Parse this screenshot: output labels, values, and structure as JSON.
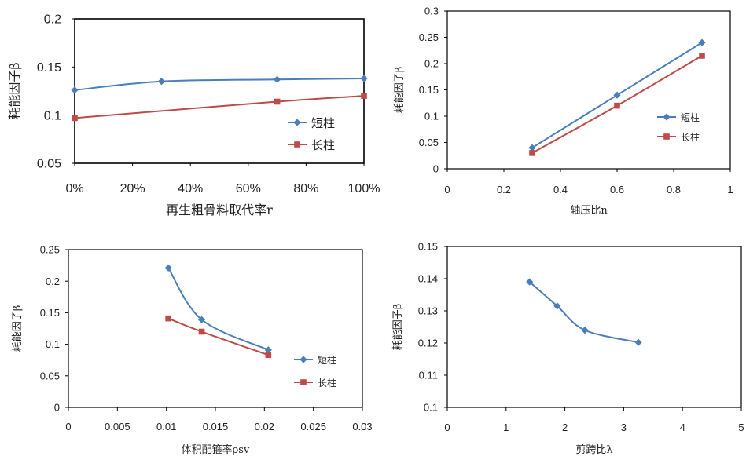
{
  "chart_data": [
    {
      "type": "line",
      "ylabel": "耗能因子β",
      "xlabel": "再生粗骨料取代率r",
      "x_ticks": [
        "0%",
        "20%",
        "40%",
        "60%",
        "80%",
        "100%"
      ],
      "y_ticks": [
        "0.05",
        "0.1",
        "0.15",
        "0.2"
      ],
      "xlim": [
        0,
        100
      ],
      "ylim": [
        0.05,
        0.2
      ],
      "grid": false,
      "legend_position": "bottom-right",
      "series": [
        {
          "name": "短柱",
          "color": "#4a7ebb",
          "marker": "diamond",
          "x": [
            0,
            30,
            70,
            100
          ],
          "y": [
            0.126,
            0.135,
            0.137,
            0.138
          ]
        },
        {
          "name": "长柱",
          "color": "#be4b48",
          "marker": "square",
          "x": [
            0,
            70,
            100
          ],
          "y": [
            0.097,
            0.114,
            0.12
          ]
        }
      ]
    },
    {
      "type": "line",
      "ylabel": "耗能因子β",
      "xlabel": "轴压比n",
      "x_ticks": [
        "0",
        "0.2",
        "0.4",
        "0.6",
        "0.8",
        "1"
      ],
      "y_ticks": [
        "0",
        "0.05",
        "0.1",
        "0.15",
        "0.2",
        "0.25",
        "0.3"
      ],
      "xlim": [
        0,
        1
      ],
      "ylim": [
        0,
        0.3
      ],
      "grid": false,
      "legend_position": "right",
      "series": [
        {
          "name": "短柱",
          "color": "#4a7ebb",
          "marker": "diamond",
          "x": [
            0.3,
            0.6,
            0.9
          ],
          "y": [
            0.04,
            0.14,
            0.24
          ]
        },
        {
          "name": "长柱",
          "color": "#be4b48",
          "marker": "square",
          "x": [
            0.3,
            0.6,
            0.9
          ],
          "y": [
            0.03,
            0.12,
            0.215
          ]
        }
      ]
    },
    {
      "type": "line",
      "ylabel": "耗能因子β",
      "xlabel": "体积配箍率ρsv",
      "x_ticks": [
        "0",
        "0.005",
        "0.01",
        "0.015",
        "0.02",
        "0.025",
        "0.03"
      ],
      "y_ticks": [
        "0",
        "0.05",
        "0.1",
        "0.15",
        "0.2",
        "0.25"
      ],
      "xlim": [
        0,
        0.03
      ],
      "ylim": [
        0,
        0.25
      ],
      "grid": false,
      "legend_position": "bottom-right",
      "series": [
        {
          "name": "短柱",
          "color": "#4a7ebb",
          "marker": "diamond",
          "x": [
            0.0102,
            0.0136,
            0.0204
          ],
          "y": [
            0.221,
            0.139,
            0.091
          ]
        },
        {
          "name": "长柱",
          "color": "#be4b48",
          "marker": "square",
          "x": [
            0.0102,
            0.0136,
            0.0204
          ],
          "y": [
            0.141,
            0.12,
            0.083
          ]
        }
      ]
    },
    {
      "type": "line",
      "ylabel": "耗能因子β",
      "xlabel": "剪跨比λ",
      "x_ticks": [
        "0",
        "1",
        "2",
        "3",
        "4",
        "5"
      ],
      "y_ticks": [
        "0.1",
        "0.11",
        "0.12",
        "0.13",
        "0.14",
        "0.15"
      ],
      "xlim": [
        0,
        5
      ],
      "ylim": [
        0.1,
        0.15
      ],
      "grid": false,
      "series": [
        {
          "color": "#4a7ebb",
          "marker": "diamond",
          "x": [
            1.4,
            1.87,
            2.34,
            3.25
          ],
          "y": [
            0.139,
            0.1315,
            0.124,
            0.1202
          ]
        }
      ]
    }
  ]
}
